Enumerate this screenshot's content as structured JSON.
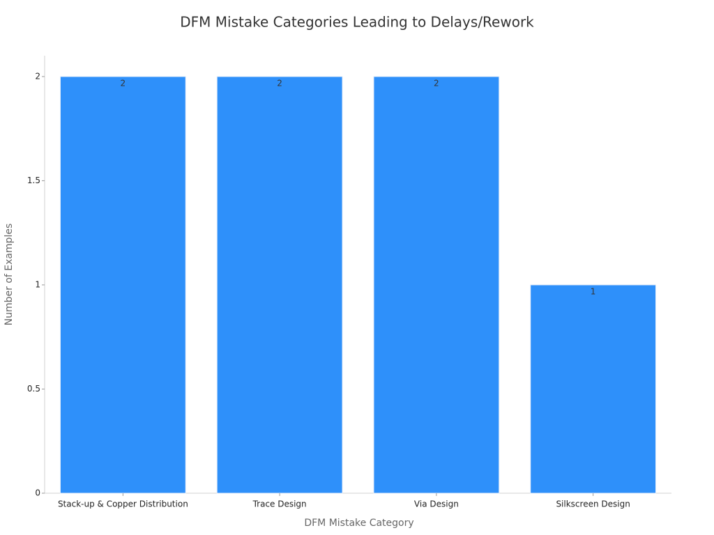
{
  "chart_data": {
    "type": "bar",
    "title": "DFM Mistake Categories Leading to Delays/Rework",
    "x_label": "DFM Mistake Category",
    "y_label": "Number of Examples",
    "categories": [
      "Stack-up & Copper Distribution",
      "Trace Design",
      "Via Design",
      "Silkscreen Design"
    ],
    "values": [
      2,
      2,
      2,
      1
    ],
    "color": "#2e90fa",
    "ylim": [
      0,
      2.1
    ],
    "yticks": [
      0,
      0.5,
      1,
      1.5,
      2
    ],
    "grid": false
  }
}
